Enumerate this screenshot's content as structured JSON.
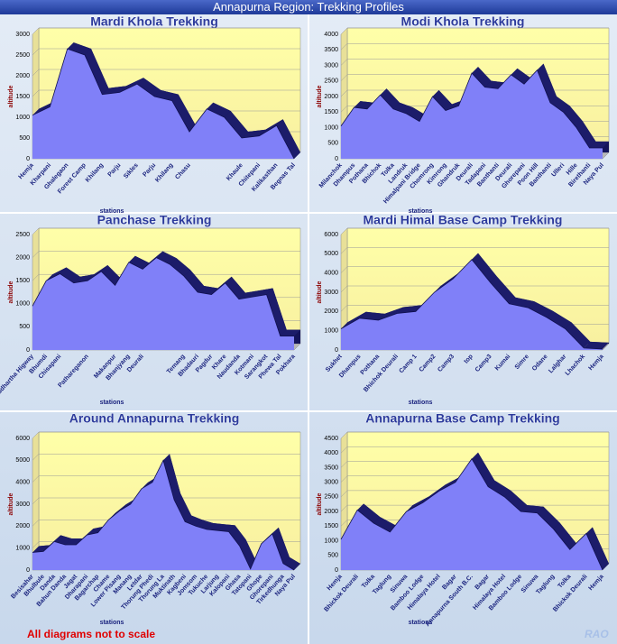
{
  "title": "Annapurna Region: Trekking Profiles",
  "note": "All diagrams not to scale",
  "signature": "RAO",
  "chart_data": [
    {
      "type": "area",
      "title": "Mardi Khola Trekking",
      "x_label": "stations",
      "y_label": "altitude",
      "categories": [
        "Hemja",
        "Kharpani",
        "Ghalegaon",
        "Forest Camp",
        "Khilang",
        "Parju",
        "Sikles",
        "Parju",
        "Khilang",
        "Chasu",
        null,
        null,
        "Khaule",
        "Chitepani",
        "Kalikasthan",
        "Begnas Tal"
      ],
      "values": [
        1050,
        1250,
        2650,
        2500,
        1550,
        1600,
        1800,
        1500,
        1400,
        650,
        1200,
        1000,
        500,
        550,
        800,
        0
      ],
      "ylim": [
        0,
        3000
      ],
      "yticks": [
        0,
        500,
        1000,
        1500,
        2000,
        2500,
        3000
      ],
      "color": "#8080f8",
      "grid": true
    },
    {
      "type": "area",
      "title": "Modi Khola Trekking",
      "x_label": "stations",
      "y_label": "altitude",
      "categories": [
        "Milanchok",
        "Dhampus",
        "Pothana",
        "Bhichok",
        "Tolka",
        "Landruk",
        "Himalpani Bridge",
        "Chomrong",
        "Kimrong",
        "Ghandruk",
        "Deurali",
        "Tadapani",
        "Banthanti",
        "Deurali",
        "Ghorepani",
        "Poon Hill",
        "Banthanti",
        "Ulleri",
        "Hille",
        "Birethanti",
        "Naya Pul"
      ],
      "values": [
        1050,
        1650,
        1600,
        2050,
        1600,
        1450,
        1200,
        2000,
        1550,
        1700,
        2750,
        2300,
        2250,
        2700,
        2400,
        2850,
        1800,
        1500,
        1000,
        350,
        350
      ],
      "ylim": [
        0,
        4000
      ],
      "yticks": [
        0,
        500,
        1000,
        1500,
        2000,
        2500,
        3000,
        3500,
        4000
      ],
      "color": "#8080f8",
      "grid": true
    },
    {
      "type": "area",
      "title": "Panchase Trekking",
      "x_label": "stations",
      "y_label": "altitude",
      "categories": [
        "Siddhartha Higway",
        "Bhumdi",
        "Chisapani",
        null,
        "Pathareganon",
        null,
        "Makanpur",
        "Bhanjyang",
        "Deurali",
        null,
        null,
        "Temang",
        "Bhadauri",
        "Pagdur",
        "Khare",
        "Naudanda",
        "Kotmani",
        "Sarangkot",
        "Phewa Tal",
        "Pokhara"
      ],
      "values": [
        950,
        1500,
        1650,
        1450,
        1500,
        1700,
        1400,
        1900,
        1750,
        2000,
        1850,
        1600,
        1250,
        1200,
        1450,
        1100,
        1150,
        1200,
        300,
        300
      ],
      "ylim": [
        0,
        2500
      ],
      "yticks": [
        0,
        500,
        1000,
        1500,
        2000,
        2500
      ],
      "color": "#8080f8",
      "grid": true
    },
    {
      "type": "area",
      "title": "Mardi Himal Base Camp Trekking",
      "x_label": "stations",
      "y_label": "altitude",
      "categories": [
        "Sukhet",
        "Dhampus",
        "Pothana",
        "Bhichok Deurali",
        "Camp 1",
        "Camp2",
        "Camp3",
        "top",
        "Camp3",
        "Kumai",
        "Simre",
        "Odane",
        "Lalghar",
        "Lhachok",
        "Hemja"
      ],
      "values": [
        1100,
        1650,
        1550,
        1900,
        2000,
        3000,
        3700,
        4700,
        3500,
        2400,
        2200,
        1700,
        1100,
        100,
        50
      ],
      "ylim": [
        0,
        6000
      ],
      "yticks": [
        0,
        1000,
        2000,
        3000,
        4000,
        5000,
        6000
      ],
      "color": "#8080f8",
      "grid": true
    },
    {
      "type": "area",
      "title": "Around Annapurna Trekking",
      "x_label": "stations",
      "y_label": "altitude",
      "categories": [
        "Besisahar",
        "Bhulbule",
        "Danda",
        "Bahun Danda",
        "Jagat",
        "Dharapani",
        "Bagarchap",
        "Chame",
        "Lower Pisang",
        "Manang",
        "Letdar",
        "Thorung Phedi",
        "Thorung La",
        "Muktinath",
        "Kagbeni",
        "Jomsom",
        "Tukuche",
        "Larjung",
        "Kalopani",
        "Ghasa",
        "Tatopani",
        "Ghope",
        "Ghorepani",
        "Tirkedhunga",
        "Naya Pul"
      ],
      "values": [
        800,
        850,
        1300,
        1150,
        1150,
        1600,
        1700,
        2300,
        2700,
        3000,
        3700,
        4000,
        5000,
        3200,
        2200,
        2000,
        1850,
        1800,
        1750,
        1100,
        50,
        1200,
        1650,
        300,
        0
      ],
      "ylim": [
        0,
        6000
      ],
      "yticks": [
        0,
        1000,
        2000,
        3000,
        4000,
        5000,
        6000
      ],
      "color": "#8080f8",
      "grid": true
    },
    {
      "type": "area",
      "title": "Annapurna Base Camp Trekking",
      "x_label": "stations",
      "y_label": "altitude",
      "categories": [
        "Hemja",
        "Bhickok Deurali",
        "Tolka",
        "Taglung",
        "Sinuwa",
        "Bamboo Lodge",
        "Himalaya Hotel",
        "Bagar",
        "Annapurna South B.C.",
        "Bagar",
        "Himalaya Hotel",
        "Bamboo Lodge",
        "Sinuwa",
        "Taglung",
        "Tolka",
        "Bhickok Deurali",
        "Hemja"
      ],
      "values": [
        1050,
        2050,
        1600,
        1300,
        2000,
        2300,
        2700,
        3000,
        3800,
        2850,
        2500,
        2000,
        1950,
        1400,
        700,
        1250,
        0
      ],
      "ylim": [
        0,
        4500
      ],
      "yticks": [
        0,
        500,
        1000,
        1500,
        2000,
        2500,
        3000,
        3500,
        4000,
        4500
      ],
      "color": "#8080f8",
      "grid": true
    }
  ]
}
